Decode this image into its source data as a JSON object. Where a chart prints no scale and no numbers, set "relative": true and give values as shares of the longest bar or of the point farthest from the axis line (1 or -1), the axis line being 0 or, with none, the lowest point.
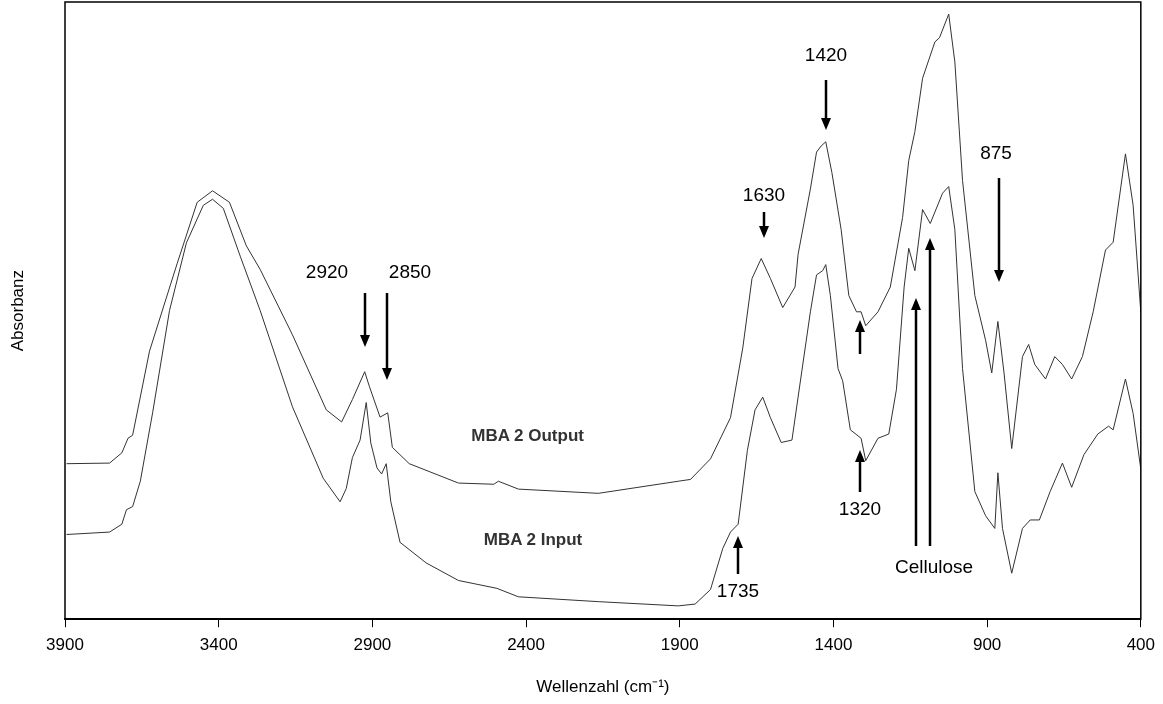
{
  "chart_data": {
    "type": "line",
    "relative": true,
    "xlabel": "Wellenzahl (cm⁻¹)",
    "ylabel": "Absorbanz",
    "xlim": [
      3900,
      400
    ],
    "xticks": [
      3900,
      3400,
      2900,
      2400,
      1900,
      1400,
      900,
      400
    ],
    "grid": false,
    "legend": false,
    "marker": "none",
    "line_style": "solid",
    "series": [
      {
        "name": "MBA 2 Output",
        "color": "#333333",
        "x": [
          3895,
          3755,
          3715,
          3695,
          3680,
          3625,
          3535,
          3470,
          3420,
          3365,
          3310,
          3265,
          3160,
          3050,
          3000,
          2965,
          2925,
          2910,
          2875,
          2850,
          2835,
          2780,
          2620,
          2505,
          2490,
          2425,
          2165,
          1905,
          1865,
          1800,
          1735,
          1695,
          1665,
          1635,
          1605,
          1565,
          1525,
          1515,
          1475,
          1455,
          1440,
          1425,
          1405,
          1375,
          1350,
          1325,
          1310,
          1295,
          1255,
          1215,
          1175,
          1155,
          1135,
          1110,
          1070,
          1055,
          1025,
          1005,
          980,
          940,
          905,
          885,
          865,
          845,
          820,
          785,
          765,
          745,
          710,
          680,
          655,
          625,
          590,
          555,
          515,
          490,
          450,
          425,
          400
        ],
        "values": [
          0.257,
          0.258,
          0.275,
          0.299,
          0.304,
          0.443,
          0.588,
          0.689,
          0.708,
          0.689,
          0.617,
          0.578,
          0.47,
          0.346,
          0.326,
          0.363,
          0.409,
          0.385,
          0.334,
          0.341,
          0.284,
          0.257,
          0.225,
          0.223,
          0.228,
          0.215,
          0.208,
          0.228,
          0.231,
          0.265,
          0.333,
          0.448,
          0.563,
          0.596,
          0.563,
          0.515,
          0.549,
          0.603,
          0.711,
          0.772,
          0.782,
          0.789,
          0.738,
          0.644,
          0.535,
          0.508,
          0.508,
          0.485,
          0.508,
          0.549,
          0.664,
          0.758,
          0.806,
          0.894,
          0.954,
          0.961,
          1,
          0.921,
          0.725,
          0.535,
          0.461,
          0.407,
          0.492,
          0.407,
          0.282,
          0.434,
          0.454,
          0.421,
          0.397,
          0.434,
          0.421,
          0.397,
          0.434,
          0.508,
          0.61,
          0.623,
          0.769,
          0.684,
          0.507
        ]
      },
      {
        "name": "MBA 2 Input",
        "color": "#333333",
        "x": [
          3895,
          3755,
          3715,
          3700,
          3680,
          3655,
          3615,
          3560,
          3505,
          3450,
          3420,
          3385,
          3330,
          3265,
          3160,
          3060,
          3005,
          2985,
          2965,
          2940,
          2920,
          2905,
          2885,
          2870,
          2855,
          2840,
          2810,
          2725,
          2620,
          2495,
          2425,
          2165,
          1905,
          1850,
          1800,
          1760,
          1735,
          1710,
          1680,
          1655,
          1630,
          1605,
          1570,
          1535,
          1515,
          1475,
          1455,
          1435,
          1425,
          1410,
          1385,
          1370,
          1345,
          1310,
          1295,
          1255,
          1220,
          1195,
          1170,
          1155,
          1135,
          1110,
          1085,
          1045,
          1025,
          1005,
          980,
          940,
          905,
          875,
          865,
          850,
          820,
          785,
          760,
          730,
          695,
          655,
          625,
          585,
          540,
          505,
          490,
          450,
          425,
          400
        ],
        "values": [
          0.14,
          0.144,
          0.157,
          0.181,
          0.186,
          0.228,
          0.341,
          0.51,
          0.622,
          0.684,
          0.694,
          0.679,
          0.6,
          0.51,
          0.351,
          0.233,
          0.194,
          0.216,
          0.267,
          0.296,
          0.358,
          0.291,
          0.25,
          0.24,
          0.257,
          0.194,
          0.127,
          0.093,
          0.064,
          0.051,
          0.037,
          0.029,
          0.022,
          0.025,
          0.049,
          0.117,
          0.144,
          0.157,
          0.279,
          0.346,
          0.367,
          0.333,
          0.292,
          0.296,
          0.367,
          0.508,
          0.569,
          0.576,
          0.586,
          0.535,
          0.414,
          0.394,
          0.313,
          0.299,
          0.262,
          0.299,
          0.306,
          0.38,
          0.549,
          0.613,
          0.576,
          0.677,
          0.654,
          0.704,
          0.715,
          0.644,
          0.414,
          0.211,
          0.171,
          0.15,
          0.242,
          0.15,
          0.076,
          0.15,
          0.164,
          0.164,
          0.211,
          0.258,
          0.218,
          0.272,
          0.306,
          0.319,
          0.313,
          0.397,
          0.34,
          0.248
        ]
      }
    ],
    "annotations": [
      "2920",
      "2850",
      "1630",
      "1420",
      "875",
      "1320",
      "1735",
      "Cellulose"
    ]
  }
}
